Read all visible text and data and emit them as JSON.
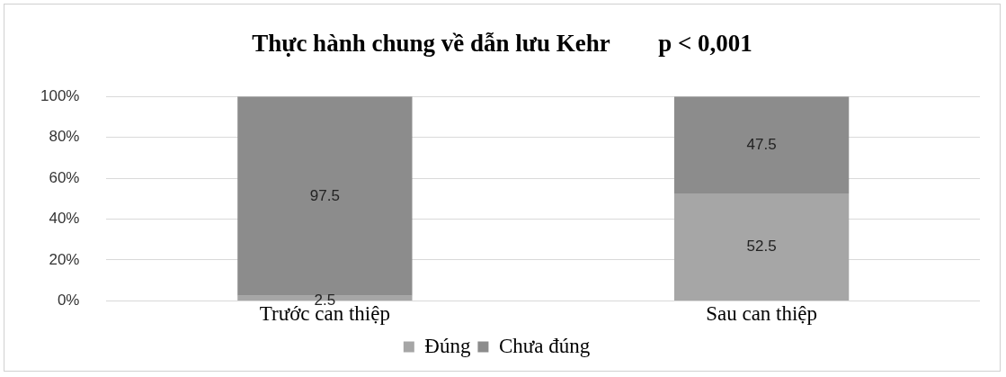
{
  "chart_data": {
    "type": "bar",
    "title": "Thực hành chung về dẫn lưu Kehr",
    "annotations": [
      "p < 0,001"
    ],
    "categories": [
      "Trước can thiệp",
      "Sau can thiệp"
    ],
    "series": [
      {
        "name": "Đúng",
        "color": "#a6a6a6",
        "values": [
          2.5,
          52.5
        ]
      },
      {
        "name": "Chưa đúng",
        "color": "#8c8c8c",
        "values": [
          97.5,
          47.5
        ]
      }
    ],
    "stacked": true,
    "data_labels": true,
    "ylim": [
      0,
      100
    ],
    "yticks": [
      {
        "value": 0,
        "label": "0%"
      },
      {
        "value": 20,
        "label": "20%"
      },
      {
        "value": 40,
        "label": "40%"
      },
      {
        "value": 60,
        "label": "60%"
      },
      {
        "value": 80,
        "label": "80%"
      },
      {
        "value": 100,
        "label": "100%"
      }
    ],
    "grid": "y",
    "legend": "bottom"
  }
}
